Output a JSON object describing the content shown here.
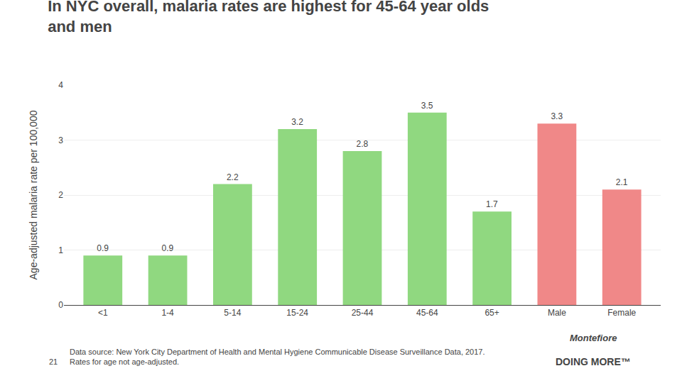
{
  "chart_data": {
    "type": "bar",
    "title": "In NYC overall, malaria rates are highest for 45-64 year olds\nand men",
    "ylabel": "Age-adjusted malaria rate per 100,000",
    "categories": [
      "<1",
      "1-4",
      "5-14",
      "15-24",
      "25-44",
      "45-64",
      "65+",
      "Male",
      "Female"
    ],
    "values": [
      0.9,
      0.9,
      2.2,
      3.2,
      2.8,
      3.5,
      1.7,
      3.3,
      2.1
    ],
    "colors": [
      "#90d880",
      "#90d880",
      "#90d880",
      "#90d880",
      "#90d880",
      "#90d880",
      "#90d880",
      "#f08888",
      "#f08888"
    ],
    "ylim": [
      0,
      4
    ],
    "yticks": [
      0,
      1,
      2,
      3,
      4
    ],
    "grid": true,
    "data_labels": true,
    "annotations": [
      "21",
      "Data source: New York City Department of Health and Mental Hygiene Communicable Disease Surveillance Data, 2017.\nRates for age not age-adjusted.",
      "Montefiore",
      "DOING MORE™"
    ]
  }
}
